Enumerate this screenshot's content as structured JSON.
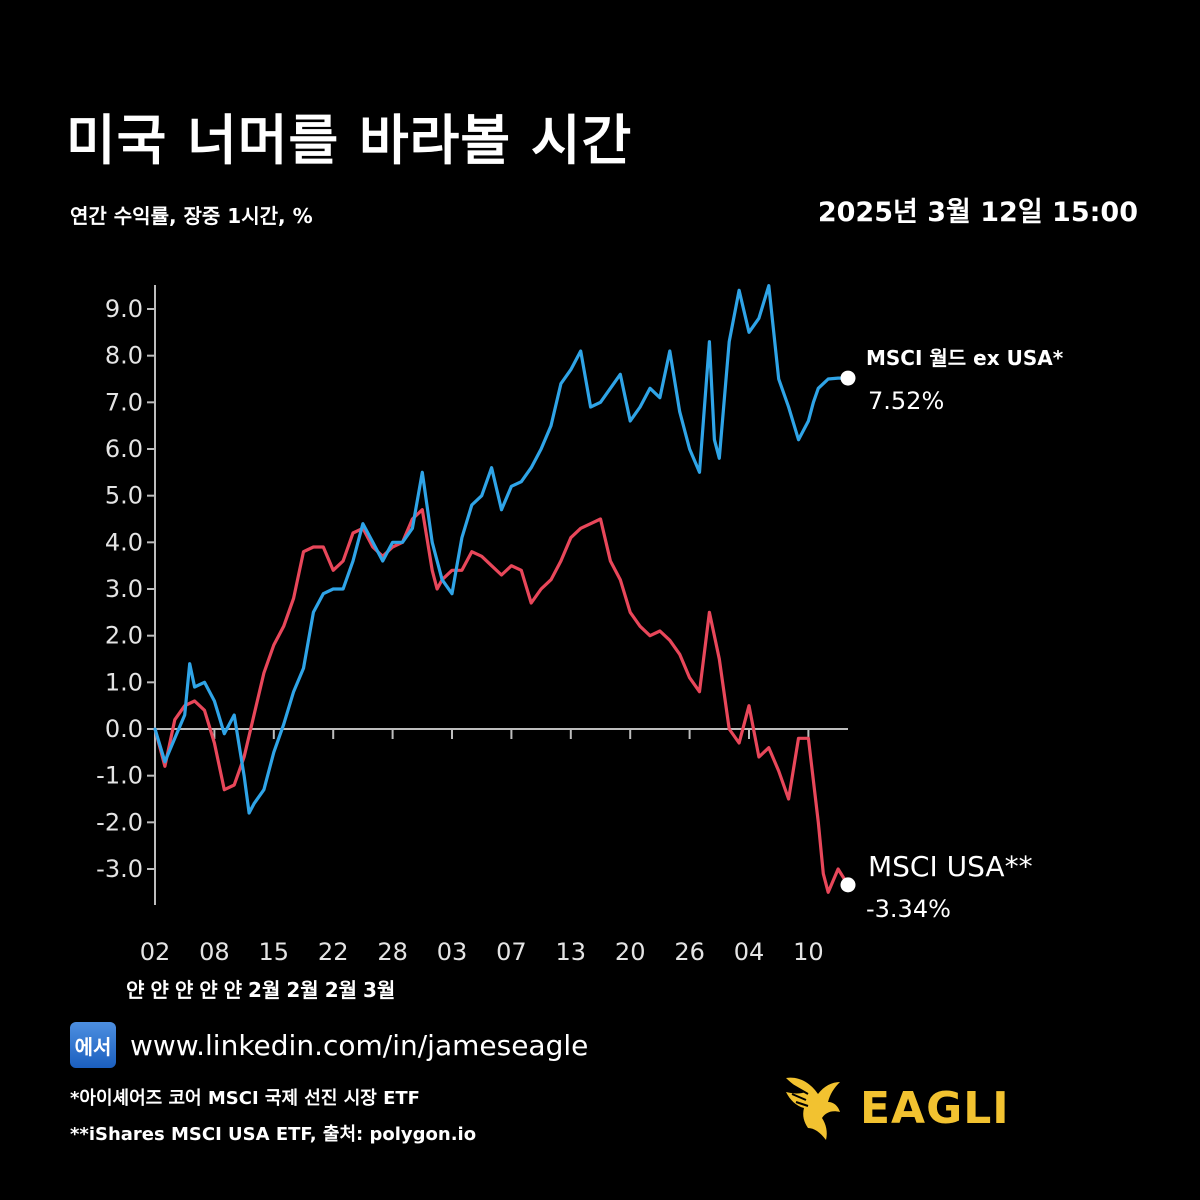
{
  "header": {
    "title": "미국 너머를 바라볼 시간",
    "subtitle": "연간 수익률, 장중 1시간, %",
    "timestamp": "2025년 3월 12일 15:00"
  },
  "colors": {
    "background": "#000000",
    "world_ex_usa": "#2fa4e7",
    "usa": "#e8475a",
    "axis": "#bdbdbd",
    "brand": "#f2c230"
  },
  "chart_data": {
    "type": "line",
    "title": "미국 너머를 바라볼 시간",
    "ylabel": "연간 수익률, 장중 1시간, %",
    "ylim": [
      -3.8,
      9.6
    ],
    "yticks": [
      "9.0",
      "8.0",
      "7.0",
      "6.0",
      "5.0",
      "4.0",
      "3.0",
      "2.0",
      "1.0",
      "0.0",
      "-1.0",
      "-2.0",
      "-3.0"
    ],
    "xlim": [
      0,
      70
    ],
    "xticks": [
      {
        "label": "02",
        "x": 0
      },
      {
        "label": "08",
        "x": 6
      },
      {
        "label": "15",
        "x": 12
      },
      {
        "label": "22",
        "x": 18
      },
      {
        "label": "28",
        "x": 24
      },
      {
        "label": "03",
        "x": 30
      },
      {
        "label": "07",
        "x": 36
      },
      {
        "label": "13",
        "x": 42
      },
      {
        "label": "20",
        "x": 48
      },
      {
        "label": "26",
        "x": 54
      },
      {
        "label": "04",
        "x": 60
      },
      {
        "label": "10",
        "x": 66
      }
    ],
    "month_labels": [
      "얀",
      "얀",
      "얀",
      "얀",
      "얀",
      "2월",
      "2월",
      "2월",
      "3월"
    ],
    "series": [
      {
        "name": "MSCI 월드 ex USA*",
        "end_label": "7.52%",
        "color": "#2fa4e7",
        "x": [
          0,
          1,
          2,
          3,
          3.5,
          4,
          5,
          6,
          7,
          8,
          9,
          9.5,
          10,
          11,
          12,
          13,
          14,
          15,
          16,
          17,
          18,
          19,
          20,
          21,
          22,
          23,
          24,
          25,
          26,
          27,
          28,
          29,
          30,
          30.5,
          31,
          32,
          33,
          34,
          35,
          36,
          37,
          38,
          39,
          40,
          41,
          42,
          43,
          44,
          45,
          46,
          47,
          48,
          49,
          50,
          51,
          52,
          53,
          54,
          55,
          56,
          56.5,
          57,
          58,
          59,
          60,
          61,
          62,
          63,
          64,
          65,
          66,
          66.5,
          67,
          68,
          69,
          70
        ],
        "y": [
          0.0,
          -0.7,
          -0.2,
          0.3,
          1.4,
          0.9,
          1.0,
          0.6,
          -0.1,
          0.3,
          -1.0,
          -1.8,
          -1.6,
          -1.3,
          -0.5,
          0.1,
          0.8,
          1.3,
          2.5,
          2.9,
          3.0,
          3.0,
          3.6,
          4.4,
          4.0,
          3.6,
          4.0,
          4.0,
          4.3,
          5.5,
          4.0,
          3.2,
          2.9,
          3.5,
          4.1,
          4.8,
          5.0,
          5.6,
          4.7,
          5.2,
          5.3,
          5.6,
          6.0,
          6.5,
          7.4,
          7.7,
          8.1,
          6.9,
          7.0,
          7.3,
          7.6,
          6.6,
          6.9,
          7.3,
          7.1,
          8.1,
          6.8,
          6.0,
          5.5,
          8.3,
          6.2,
          5.8,
          8.3,
          9.4,
          8.5,
          8.8,
          9.5,
          7.5,
          6.9,
          6.2,
          6.6,
          7.0,
          7.3,
          7.5,
          7.52,
          7.52
        ]
      },
      {
        "name": "MSCI USA**",
        "end_label": "-3.34%",
        "color": "#e8475a",
        "x": [
          0,
          1,
          2,
          3,
          4,
          5,
          6,
          7,
          8,
          9,
          10,
          11,
          12,
          13,
          14,
          15,
          16,
          17,
          18,
          19,
          20,
          21,
          22,
          23,
          24,
          25,
          26,
          27,
          28,
          28.5,
          29,
          30,
          31,
          32,
          33,
          34,
          35,
          36,
          37,
          38,
          39,
          40,
          41,
          42,
          43,
          44,
          45,
          46,
          47,
          48,
          49,
          50,
          51,
          52,
          53,
          54,
          55,
          56,
          57,
          58,
          59,
          60,
          61,
          62,
          63,
          64,
          65,
          66,
          67,
          67.5,
          68,
          69,
          70
        ],
        "y": [
          0.0,
          -0.8,
          0.2,
          0.5,
          0.6,
          0.4,
          -0.3,
          -1.3,
          -1.2,
          -0.6,
          0.3,
          1.2,
          1.8,
          2.2,
          2.8,
          3.8,
          3.9,
          3.9,
          3.4,
          3.6,
          4.2,
          4.3,
          3.9,
          3.7,
          3.9,
          4.0,
          4.5,
          4.7,
          3.4,
          3.0,
          3.2,
          3.4,
          3.4,
          3.8,
          3.7,
          3.5,
          3.3,
          3.5,
          3.4,
          2.7,
          3.0,
          3.2,
          3.6,
          4.1,
          4.3,
          4.4,
          4.5,
          3.6,
          3.2,
          2.5,
          2.2,
          2.0,
          2.1,
          1.9,
          1.6,
          1.1,
          0.8,
          2.5,
          1.5,
          0.0,
          -0.3,
          0.5,
          -0.6,
          -0.4,
          -0.9,
          -1.5,
          -0.2,
          -0.2,
          -2.0,
          -3.1,
          -3.5,
          -3.0,
          -3.34
        ]
      }
    ]
  },
  "legend_labels": {
    "world_name": "MSCI 월드 ex USA*",
    "world_value": "7.52%",
    "usa_name": "MSCI USA**",
    "usa_value": "-3.34%"
  },
  "footer": {
    "badge": "에서",
    "url": "www.linkedin.com/in/jameseagle",
    "footnote1": "*아이셰어즈 코어 MSCI 국제 선진 시장 ETF",
    "footnote2": "**iShares MSCI USA ETF, 출처: polygon.io",
    "brand": "EAGLI"
  }
}
